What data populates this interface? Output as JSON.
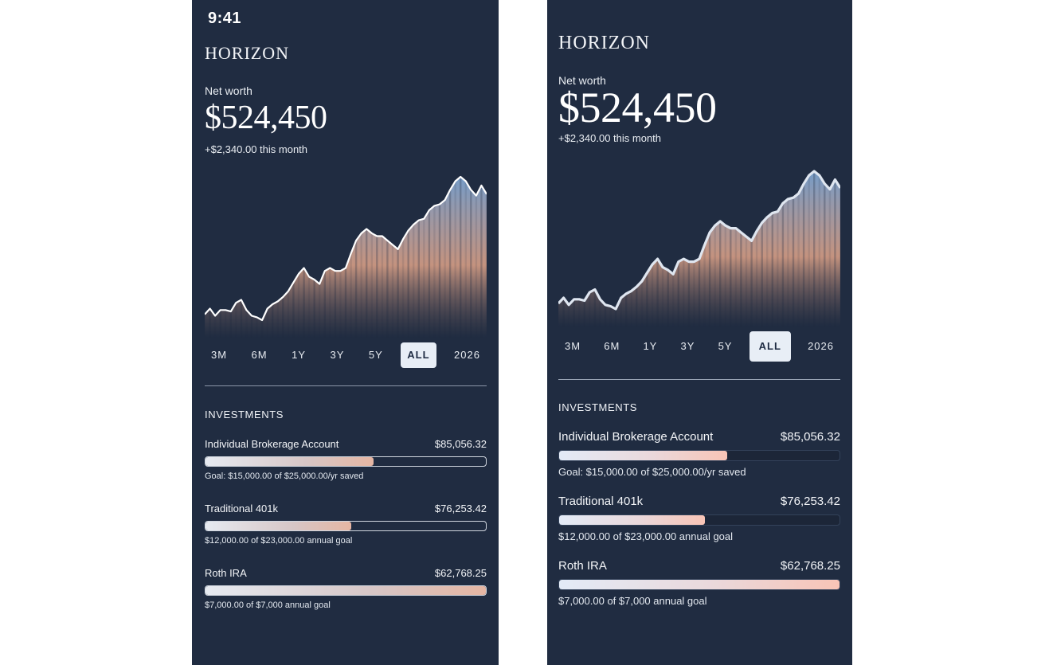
{
  "colors": {
    "screen_bg": "#202c41",
    "line": "#ffffff",
    "chart_top": "#7aa2cf",
    "chart_mid": "#e1a58a",
    "chart_bottom": "#202c41",
    "active_range_bg": "#e8eef6"
  },
  "screens": [
    {
      "status_time": "9:41",
      "brand": "HORIZON",
      "net_worth_label": "Net worth",
      "net_worth_value": "$524,450",
      "net_worth_change": "+$2,340.00 this month",
      "ranges": [
        "3M",
        "6M",
        "1Y",
        "3Y",
        "5Y",
        "ALL",
        "2026"
      ],
      "active_range": "ALL",
      "investments_title": "INVESTMENTS",
      "investments": [
        {
          "name": "Individual Brokerage Account",
          "amount": "$85,056.32",
          "progress": 0.6,
          "goal_text": "Goal: $15,000.00 of $25,000.00/yr saved"
        },
        {
          "name": "Traditional 401k",
          "amount": "$76,253.42",
          "progress": 0.52,
          "goal_text": "$12,000.00 of $23,000.00 annual goal"
        },
        {
          "name": "Roth IRA",
          "amount": "$62,768.25",
          "progress": 1.0,
          "goal_text": "$7,000.00 of $7,000 annual goal"
        }
      ]
    },
    {
      "brand": "HORIZON",
      "net_worth_label": "Net worth",
      "net_worth_value": "$524,450",
      "net_worth_change": "+$2,340.00 this month",
      "ranges": [
        "3M",
        "6M",
        "1Y",
        "3Y",
        "5Y",
        "ALL",
        "2026"
      ],
      "active_range": "ALL",
      "investments_title": "INVESTMENTS",
      "investments": [
        {
          "name": "Individual Brokerage Account",
          "amount": "$85,056.32",
          "progress": 0.6,
          "goal_text": "Goal: $15,000.00 of $25,000.00/yr saved"
        },
        {
          "name": "Traditional 401k",
          "amount": "$76,253.42",
          "progress": 0.52,
          "goal_text": "$12,000.00 of $23,000.00 annual goal"
        },
        {
          "name": "Roth IRA",
          "amount": "$62,768.25",
          "progress": 1.0,
          "goal_text": "$7,000.00 of $7,000 annual goal"
        }
      ]
    }
  ],
  "chart_series": [
    34,
    38,
    33,
    37,
    37,
    36,
    42,
    44,
    37,
    33,
    32,
    30,
    38,
    41,
    43,
    46,
    50,
    56,
    62,
    66,
    60,
    58,
    55,
    64,
    66,
    64,
    64,
    66,
    76,
    85,
    90,
    93,
    90,
    88,
    88,
    85,
    82,
    79,
    86,
    92,
    96,
    99,
    100,
    106,
    109,
    110,
    113,
    120,
    126,
    129,
    126,
    120,
    116,
    123,
    117
  ]
}
